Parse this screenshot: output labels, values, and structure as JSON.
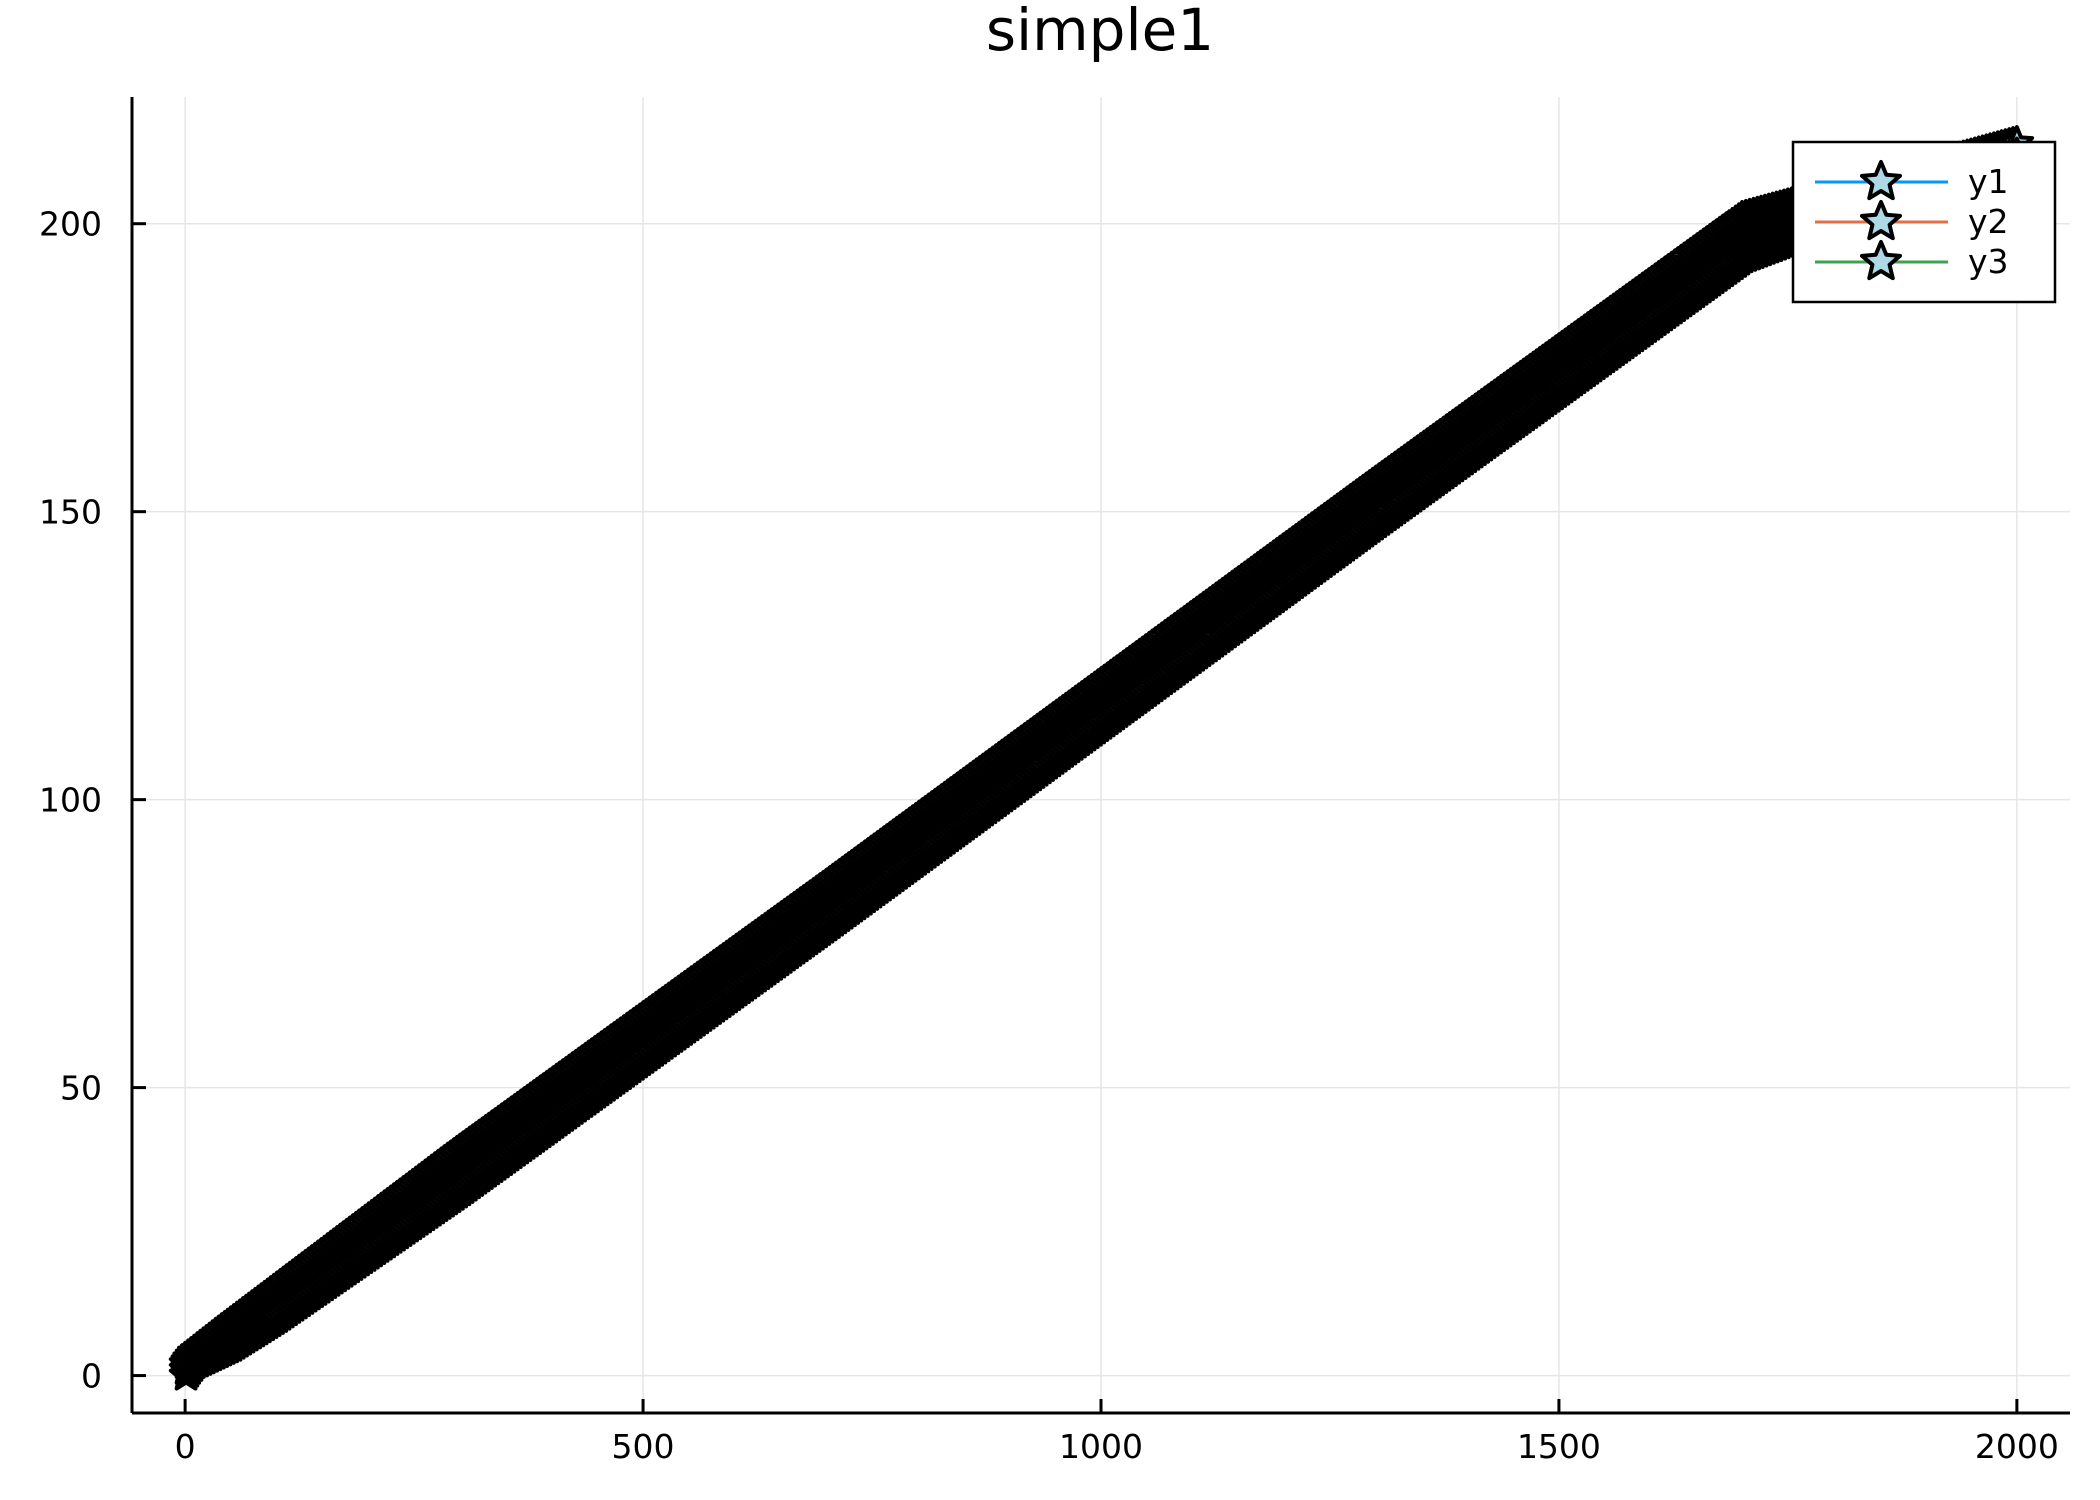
{
  "chart_data": {
    "type": "line",
    "title": "simple1",
    "xlabel": "",
    "ylabel": "",
    "xlim": [
      -58,
      2058
    ],
    "ylim": [
      -6.5,
      222
    ],
    "x_ticks": [
      {
        "value": 0,
        "label": "0"
      },
      {
        "value": 500,
        "label": "500"
      },
      {
        "value": 1000,
        "label": "1000"
      },
      {
        "value": 1500,
        "label": "1500"
      },
      {
        "value": 2000,
        "label": "2000"
      }
    ],
    "y_ticks": [
      {
        "value": 0,
        "label": "0"
      },
      {
        "value": 50,
        "label": "50"
      },
      {
        "value": 100,
        "label": "100"
      },
      {
        "value": 150,
        "label": "150"
      },
      {
        "value": 200,
        "label": "200"
      }
    ],
    "grid": true,
    "legend_position": "top-right",
    "marker": "star",
    "marker_fill": "#add8e6",
    "marker_stroke": "#000000",
    "series": [
      {
        "name": "y1",
        "color": "#009af9",
        "x": [
          1,
          5,
          10,
          50,
          100,
          200,
          300,
          500,
          700,
          1000,
          1300,
          1500,
          1700,
          2000
        ],
        "y": [
          1,
          2,
          3,
          7,
          12,
          24,
          35,
          58,
          81,
          116,
          151,
          174,
          197,
          213
        ]
      },
      {
        "name": "y2",
        "color": "#e26f46",
        "x": [
          1,
          5,
          10,
          50,
          100,
          200,
          300,
          500,
          700,
          1000,
          1300,
          1500,
          1700,
          2000
        ],
        "y": [
          2,
          3,
          4,
          9,
          15,
          27,
          39,
          62,
          85,
          120,
          155,
          178,
          201,
          214
        ]
      },
      {
        "name": "y3",
        "color": "#3da44d",
        "x": [
          1,
          5,
          10,
          50,
          100,
          200,
          300,
          500,
          700,
          1000,
          1300,
          1500,
          1700,
          2000
        ],
        "y": [
          0,
          1,
          2,
          5,
          10,
          21,
          32,
          55,
          78,
          113,
          148,
          171,
          194,
          212
        ]
      }
    ]
  }
}
